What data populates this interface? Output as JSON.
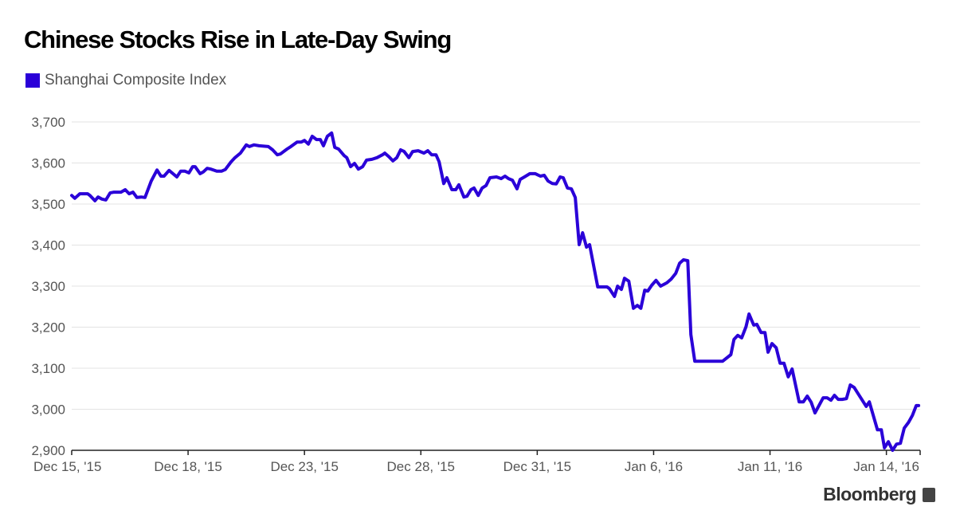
{
  "chart_data": {
    "type": "line",
    "title": "Chinese Stocks Rise in Late-Day Swing",
    "legend": [
      {
        "name": "Shanghai Composite Index",
        "color": "#2a00d8"
      }
    ],
    "legend_position": "top-left",
    "xlabel": "",
    "ylabel": "",
    "x_units": "trading days since Dec 15, '15 open",
    "xlim": [
      0,
      21.87
    ],
    "ylim": [
      2900,
      3700
    ],
    "grid": true,
    "yticks": [
      2900,
      3000,
      3100,
      3200,
      3300,
      3400,
      3500,
      3600,
      3700
    ],
    "ytick_labels": [
      "2,900",
      "3,000",
      "3,100",
      "3,200",
      "3,300",
      "3,400",
      "3,500",
      "3,600",
      "3,700"
    ],
    "xticks": [
      0,
      3,
      6,
      9,
      12,
      15,
      18,
      21
    ],
    "xtick_labels": [
      "Dec 15, '15",
      "Dec 18, '15",
      "Dec 23, '15",
      "Dec 28, '15",
      "Dec 31, '15",
      "Jan 6, '16",
      "Jan 11, '16",
      "Jan 14, '16"
    ],
    "series": [
      {
        "name": "Shanghai Composite Index",
        "x": [
          0,
          0.08,
          0.21,
          0.41,
          0.47,
          0.6,
          0.68,
          0.78,
          0.88,
          0.99,
          1.09,
          1.27,
          1.38,
          1.48,
          1.58,
          1.68,
          1.79,
          1.89,
          2.05,
          2.2,
          2.3,
          2.38,
          2.51,
          2.61,
          2.71,
          2.81,
          2.92,
          3.02,
          3.12,
          3.18,
          3.31,
          3.39,
          3.49,
          3.59,
          3.74,
          3.86,
          3.96,
          4.11,
          4.21,
          4.35,
          4.5,
          4.58,
          4.7,
          4.83,
          5.07,
          5.18,
          5.3,
          5.38,
          5.55,
          5.65,
          5.81,
          5.92,
          6.0,
          6.1,
          6.2,
          6.31,
          6.41,
          6.49,
          6.59,
          6.7,
          6.78,
          6.88,
          7.02,
          7.09,
          7.19,
          7.29,
          7.39,
          7.5,
          7.6,
          7.74,
          7.87,
          8.01,
          8.07,
          8.18,
          8.28,
          8.38,
          8.48,
          8.57,
          8.69,
          8.79,
          8.93,
          9.08,
          9.18,
          9.28,
          9.39,
          9.47,
          9.59,
          9.67,
          9.8,
          9.9,
          9.98,
          10.11,
          10.19,
          10.29,
          10.37,
          10.48,
          10.58,
          10.68,
          10.78,
          10.95,
          11.07,
          11.17,
          11.26,
          11.36,
          11.48,
          11.56,
          11.67,
          11.81,
          11.95,
          12.08,
          12.18,
          12.28,
          12.39,
          12.49,
          12.59,
          12.67,
          12.78,
          12.88,
          12.98,
          13.08,
          13.17,
          13.27,
          13.35,
          13.56,
          13.8,
          13.86,
          13.99,
          14.07,
          14.17,
          14.25,
          14.36,
          14.48,
          14.58,
          14.67,
          14.77,
          14.85,
          14.95,
          15.06,
          15.18,
          15.34,
          15.45,
          15.57,
          15.67,
          15.77,
          15.88,
          15.96,
          16.06,
          16.78,
          16.99,
          17.07,
          17.17,
          17.27,
          17.38,
          17.46,
          17.58,
          17.66,
          17.77,
          17.87,
          17.95,
          18.05,
          18.16,
          18.26,
          18.36,
          18.47,
          18.57,
          18.75,
          18.86,
          18.96,
          19.06,
          19.16,
          19.37,
          19.47,
          19.57,
          19.66,
          19.76,
          19.86,
          19.97,
          20.07,
          20.17,
          20.27,
          20.48,
          20.56,
          20.77,
          20.87,
          20.95,
          21.05,
          21.16,
          21.26,
          21.36,
          21.46,
          21.57,
          21.67,
          21.77,
          21.83
        ],
        "y": [
          3521,
          3514,
          3525,
          3525,
          3521,
          3508,
          3517,
          3512,
          3510,
          3527,
          3529,
          3529,
          3535,
          3525,
          3529,
          3516,
          3517,
          3516,
          3556,
          3583,
          3568,
          3568,
          3582,
          3574,
          3566,
          3580,
          3580,
          3576,
          3591,
          3591,
          3574,
          3578,
          3587,
          3585,
          3580,
          3580,
          3584,
          3603,
          3613,
          3624,
          3644,
          3640,
          3644,
          3642,
          3640,
          3632,
          3620,
          3622,
          3634,
          3640,
          3651,
          3651,
          3655,
          3646,
          3665,
          3657,
          3657,
          3642,
          3665,
          3673,
          3638,
          3634,
          3618,
          3613,
          3591,
          3599,
          3585,
          3591,
          3607,
          3609,
          3613,
          3620,
          3624,
          3615,
          3605,
          3613,
          3632,
          3628,
          3613,
          3628,
          3630,
          3624,
          3630,
          3620,
          3620,
          3603,
          3550,
          3564,
          3535,
          3535,
          3547,
          3517,
          3519,
          3535,
          3539,
          3521,
          3539,
          3545,
          3564,
          3566,
          3562,
          3568,
          3562,
          3558,
          3537,
          3560,
          3566,
          3574,
          3574,
          3568,
          3570,
          3556,
          3550,
          3549,
          3566,
          3564,
          3539,
          3537,
          3516,
          3401,
          3430,
          3395,
          3401,
          3298,
          3298,
          3294,
          3275,
          3300,
          3292,
          3319,
          3312,
          3246,
          3253,
          3246,
          3290,
          3288,
          3302,
          3314,
          3300,
          3308,
          3317,
          3331,
          3356,
          3364,
          3362,
          3182,
          3117,
          3117,
          3133,
          3170,
          3180,
          3174,
          3201,
          3232,
          3205,
          3207,
          3187,
          3187,
          3139,
          3160,
          3150,
          3112,
          3112,
          3079,
          3098,
          3018,
          3018,
          3032,
          3017,
          2991,
          3028,
          3028,
          3022,
          3034,
          3024,
          3024,
          3026,
          3059,
          3053,
          3038,
          3007,
          3018,
          2950,
          2950,
          2906,
          2921,
          2900,
          2915,
          2917,
          2954,
          2968,
          2985,
          3009,
          3009
        ]
      }
    ]
  },
  "source": "Bloomberg"
}
